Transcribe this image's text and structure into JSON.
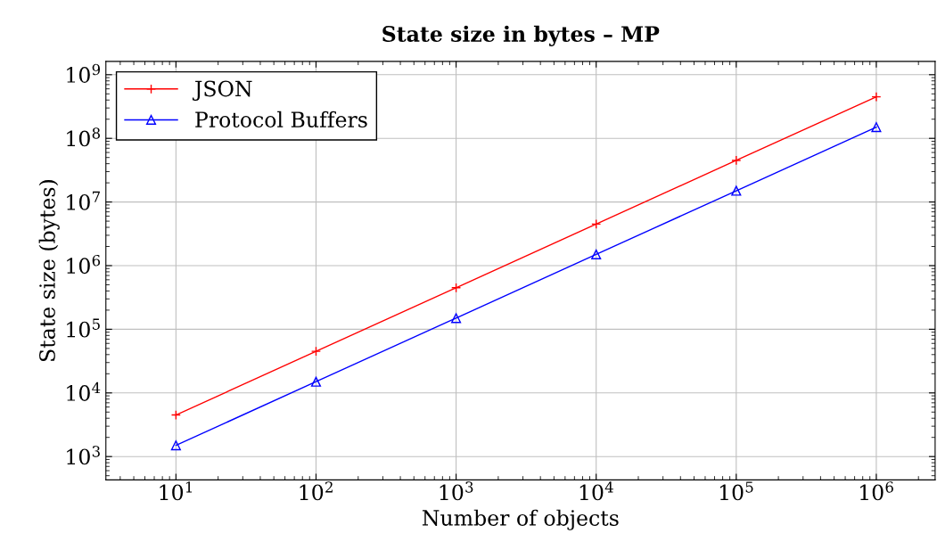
{
  "chart_data": {
    "type": "line",
    "title": "State size in bytes – MP",
    "xlabel": "Number of objects",
    "ylabel": "State size (bytes)",
    "x": [
      10,
      100,
      1000,
      10000,
      100000,
      1000000
    ],
    "series": [
      {
        "name": "JSON",
        "color": "#ff0000",
        "marker": "cross",
        "values": [
          4500,
          45000,
          450000,
          4500000,
          45000000,
          450000000
        ]
      },
      {
        "name": "Protocol Buffers",
        "color": "#0000ff",
        "marker": "triangle",
        "values": [
          1500,
          15000,
          150000,
          1500000,
          15000000,
          150000000
        ]
      }
    ],
    "log": "xy",
    "grid": true,
    "legend": "top left",
    "line_style": "solid",
    "xlim": [
      3.16,
      2630000
    ],
    "ylim": [
      430,
      1620000000
    ],
    "xticks": [
      {
        "value": 10,
        "label": "10$^{1}$"
      },
      {
        "value": 100,
        "label": "10$^{2}$"
      },
      {
        "value": 1000,
        "label": "10$^{3}$"
      },
      {
        "value": 10000,
        "label": "10$^{4}$"
      },
      {
        "value": 100000,
        "label": "10$^{5}$"
      },
      {
        "value": 1000000,
        "label": "10$^{6}$"
      }
    ],
    "yticks": [
      {
        "value": 1000,
        "label": "10$^{3}$"
      },
      {
        "value": 10000,
        "label": "10$^{4}$"
      },
      {
        "value": 100000,
        "label": "10$^{5}$"
      },
      {
        "value": 1000000,
        "label": "10$^{6}$"
      },
      {
        "value": 10000000,
        "label": "10$^{7}$"
      },
      {
        "value": 100000000,
        "label": "10$^{8}$"
      },
      {
        "value": 1000000000,
        "label": "10$^{9}$"
      }
    ]
  }
}
